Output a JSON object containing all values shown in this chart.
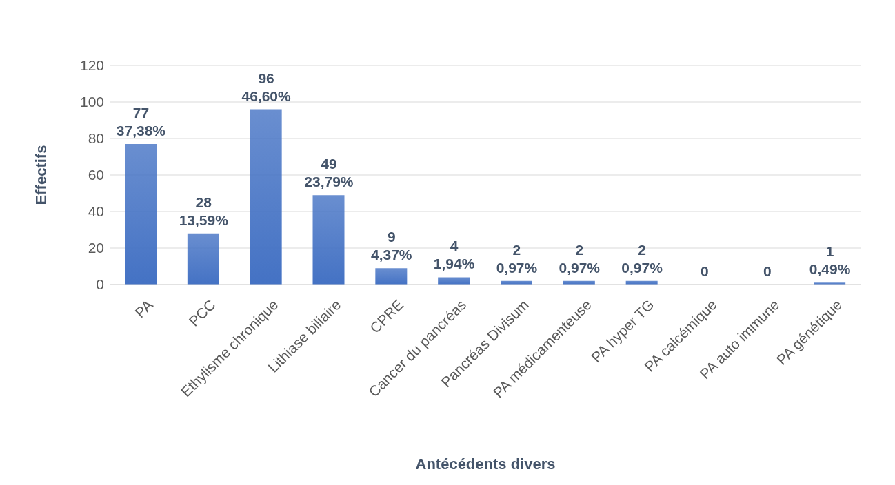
{
  "chart_data": {
    "type": "bar",
    "xlabel": "Antécédents divers",
    "ylabel": "Effectifs",
    "categories": [
      "PA",
      "PCC",
      "Ethylisme chronique",
      "Lithiase biliaire",
      "CPRE",
      "Cancer du pancréas",
      "Pancréas Divisum",
      "PA médicamenteuse",
      "PA hyper TG",
      "PA calcémique",
      "PA auto immune",
      "PA génétique"
    ],
    "values": [
      77,
      28,
      96,
      49,
      9,
      4,
      2,
      2,
      2,
      0,
      0,
      1
    ],
    "value_labels": [
      "77\n37,38%",
      "28\n13,59%",
      "96\n46,60%",
      "49\n23,79%",
      "9\n4,37%",
      "4\n1,94%",
      "2\n0,97%",
      "2\n0,97%",
      "2\n0,97%",
      "0",
      "0",
      "1\n0,49%"
    ],
    "color": "#4472c4",
    "ylim": [
      0,
      120
    ],
    "yticks": [
      0,
      20,
      40,
      60,
      80,
      100,
      120
    ],
    "grid": "y",
    "legend": false
  }
}
